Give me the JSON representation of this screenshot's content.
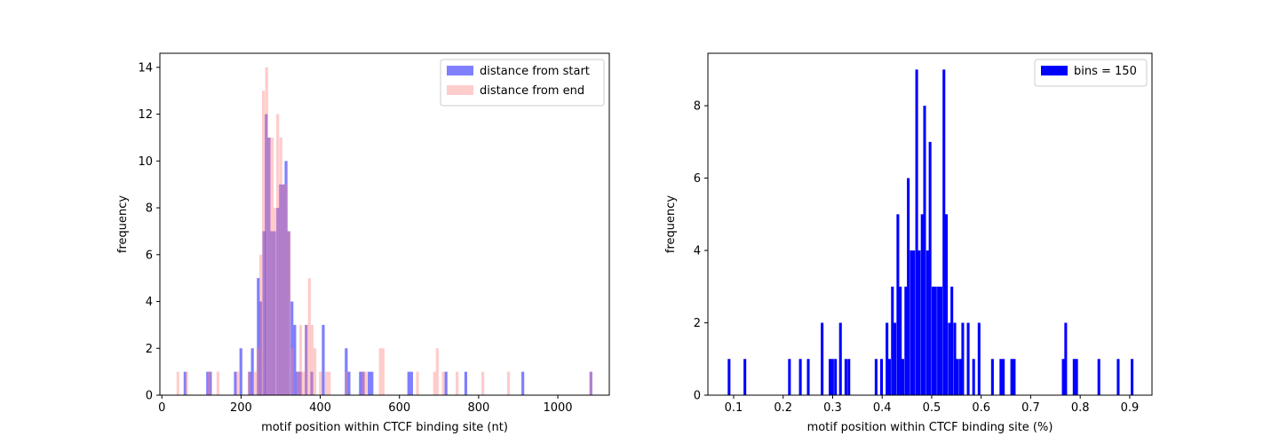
{
  "chart_data": [
    {
      "type": "bar",
      "kind": "histogram-overlay",
      "xlabel": "motif position within CTCF binding site (nt)",
      "ylabel": "frequency",
      "xlim": [
        -5,
        1130
      ],
      "ylim": [
        0,
        14.6
      ],
      "xticks": [
        0,
        200,
        400,
        600,
        800,
        1000
      ],
      "yticks": [
        0,
        2,
        4,
        6,
        8,
        10,
        12,
        14
      ],
      "bin_width": 7.2,
      "legend_position": "top-right",
      "series": [
        {
          "name": "distance from start",
          "color": "#0000ff",
          "opacity": 0.5,
          "bins": [
            [
              55,
              1
            ],
            [
              112,
              1
            ],
            [
              119,
              1
            ],
            [
              182,
              1
            ],
            [
              196,
              2
            ],
            [
              218,
              1
            ],
            [
              225,
              2
            ],
            [
              240,
              5
            ],
            [
              246,
              4
            ],
            [
              254,
              7
            ],
            [
              260,
              12
            ],
            [
              267,
              11
            ],
            [
              274,
              7
            ],
            [
              281,
              7
            ],
            [
              289,
              8
            ],
            [
              296,
              9
            ],
            [
              303,
              9
            ],
            [
              310,
              10
            ],
            [
              317,
              7
            ],
            [
              325,
              4
            ],
            [
              332,
              3
            ],
            [
              339,
              1
            ],
            [
              346,
              1
            ],
            [
              361,
              3
            ],
            [
              375,
              1
            ],
            [
              404,
              3
            ],
            [
              462,
              2
            ],
            [
              469,
              1
            ],
            [
              498,
              1
            ],
            [
              505,
              1
            ],
            [
              520,
              1
            ],
            [
              527,
              1
            ],
            [
              620,
              1
            ],
            [
              627,
              1
            ],
            [
              714,
              1
            ],
            [
              764,
              1
            ],
            [
              908,
              1
            ],
            [
              1080,
              1
            ]
          ]
        },
        {
          "name": "distance from end",
          "color": "#ff8080",
          "opacity": 0.4,
          "bins": [
            [
              37,
              1
            ],
            [
              59,
              1
            ],
            [
              116,
              1
            ],
            [
              138,
              1
            ],
            [
              188,
              1
            ],
            [
              217,
              1
            ],
            [
              232,
              1
            ],
            [
              239,
              2
            ],
            [
              246,
              6
            ],
            [
              253,
              13
            ],
            [
              261,
              14
            ],
            [
              268,
              11
            ],
            [
              275,
              11
            ],
            [
              282,
              8
            ],
            [
              289,
              12
            ],
            [
              297,
              11
            ],
            [
              304,
              9
            ],
            [
              311,
              9
            ],
            [
              318,
              7
            ],
            [
              326,
              2
            ],
            [
              340,
              1
            ],
            [
              347,
              3
            ],
            [
              354,
              1
            ],
            [
              361,
              3
            ],
            [
              369,
              5
            ],
            [
              376,
              3
            ],
            [
              383,
              2
            ],
            [
              397,
              1
            ],
            [
              412,
              1
            ],
            [
              419,
              1
            ],
            [
              463,
              1
            ],
            [
              505,
              1
            ],
            [
              512,
              1
            ],
            [
              548,
              2
            ],
            [
              555,
              2
            ],
            [
              642,
              1
            ],
            [
              685,
              1
            ],
            [
              692,
              2
            ],
            [
              707,
              1
            ],
            [
              742,
              1
            ],
            [
              807,
              1
            ],
            [
              872,
              1
            ],
            [
              1080,
              1
            ]
          ]
        }
      ]
    },
    {
      "type": "bar",
      "kind": "histogram",
      "xlabel": "motif position within CTCF binding site (%)",
      "ylabel": "frequency",
      "xlim": [
        0.048,
        0.945
      ],
      "ylim": [
        0,
        9.45
      ],
      "xticks": [
        0.1,
        0.2,
        0.3,
        0.4,
        0.5,
        0.6,
        0.7,
        0.8,
        0.9
      ],
      "xtick_labels": [
        "0.1",
        "0.2",
        "0.3",
        "0.4",
        "0.5",
        "0.6",
        "0.7",
        "0.8",
        "0.9"
      ],
      "yticks": [
        0,
        2,
        4,
        6,
        8
      ],
      "bin_width": 0.0055,
      "legend_position": "top-right",
      "series": [
        {
          "name": "bins = 150",
          "color": "#0000ff",
          "opacity": 1,
          "bins": [
            [
              0.088,
              1
            ],
            [
              0.12,
              1
            ],
            [
              0.21,
              1
            ],
            [
              0.232,
              1
            ],
            [
              0.248,
              1
            ],
            [
              0.276,
              2
            ],
            [
              0.292,
              1
            ],
            [
              0.297,
              1
            ],
            [
              0.303,
              1
            ],
            [
              0.313,
              2
            ],
            [
              0.324,
              1
            ],
            [
              0.33,
              1
            ],
            [
              0.385,
              1
            ],
            [
              0.396,
              1
            ],
            [
              0.407,
              2
            ],
            [
              0.412,
              1
            ],
            [
              0.418,
              3
            ],
            [
              0.423,
              2
            ],
            [
              0.429,
              5
            ],
            [
              0.434,
              3
            ],
            [
              0.439,
              1
            ],
            [
              0.445,
              3
            ],
            [
              0.45,
              6
            ],
            [
              0.456,
              4
            ],
            [
              0.461,
              4
            ],
            [
              0.467,
              9
            ],
            [
              0.472,
              4
            ],
            [
              0.478,
              5
            ],
            [
              0.483,
              8
            ],
            [
              0.489,
              4
            ],
            [
              0.494,
              7
            ],
            [
              0.5,
              3
            ],
            [
              0.505,
              3
            ],
            [
              0.511,
              3
            ],
            [
              0.516,
              3
            ],
            [
              0.522,
              9
            ],
            [
              0.527,
              5
            ],
            [
              0.533,
              2
            ],
            [
              0.538,
              3
            ],
            [
              0.544,
              2
            ],
            [
              0.549,
              1
            ],
            [
              0.555,
              1
            ],
            [
              0.56,
              2
            ],
            [
              0.571,
              2
            ],
            [
              0.582,
              1
            ],
            [
              0.593,
              2
            ],
            [
              0.62,
              1
            ],
            [
              0.637,
              1
            ],
            [
              0.642,
              1
            ],
            [
              0.659,
              1
            ],
            [
              0.664,
              1
            ],
            [
              0.763,
              1
            ],
            [
              0.768,
              2
            ],
            [
              0.785,
              1
            ],
            [
              0.79,
              1
            ],
            [
              0.835,
              1
            ],
            [
              0.874,
              1
            ],
            [
              0.902,
              1
            ]
          ]
        }
      ]
    }
  ]
}
